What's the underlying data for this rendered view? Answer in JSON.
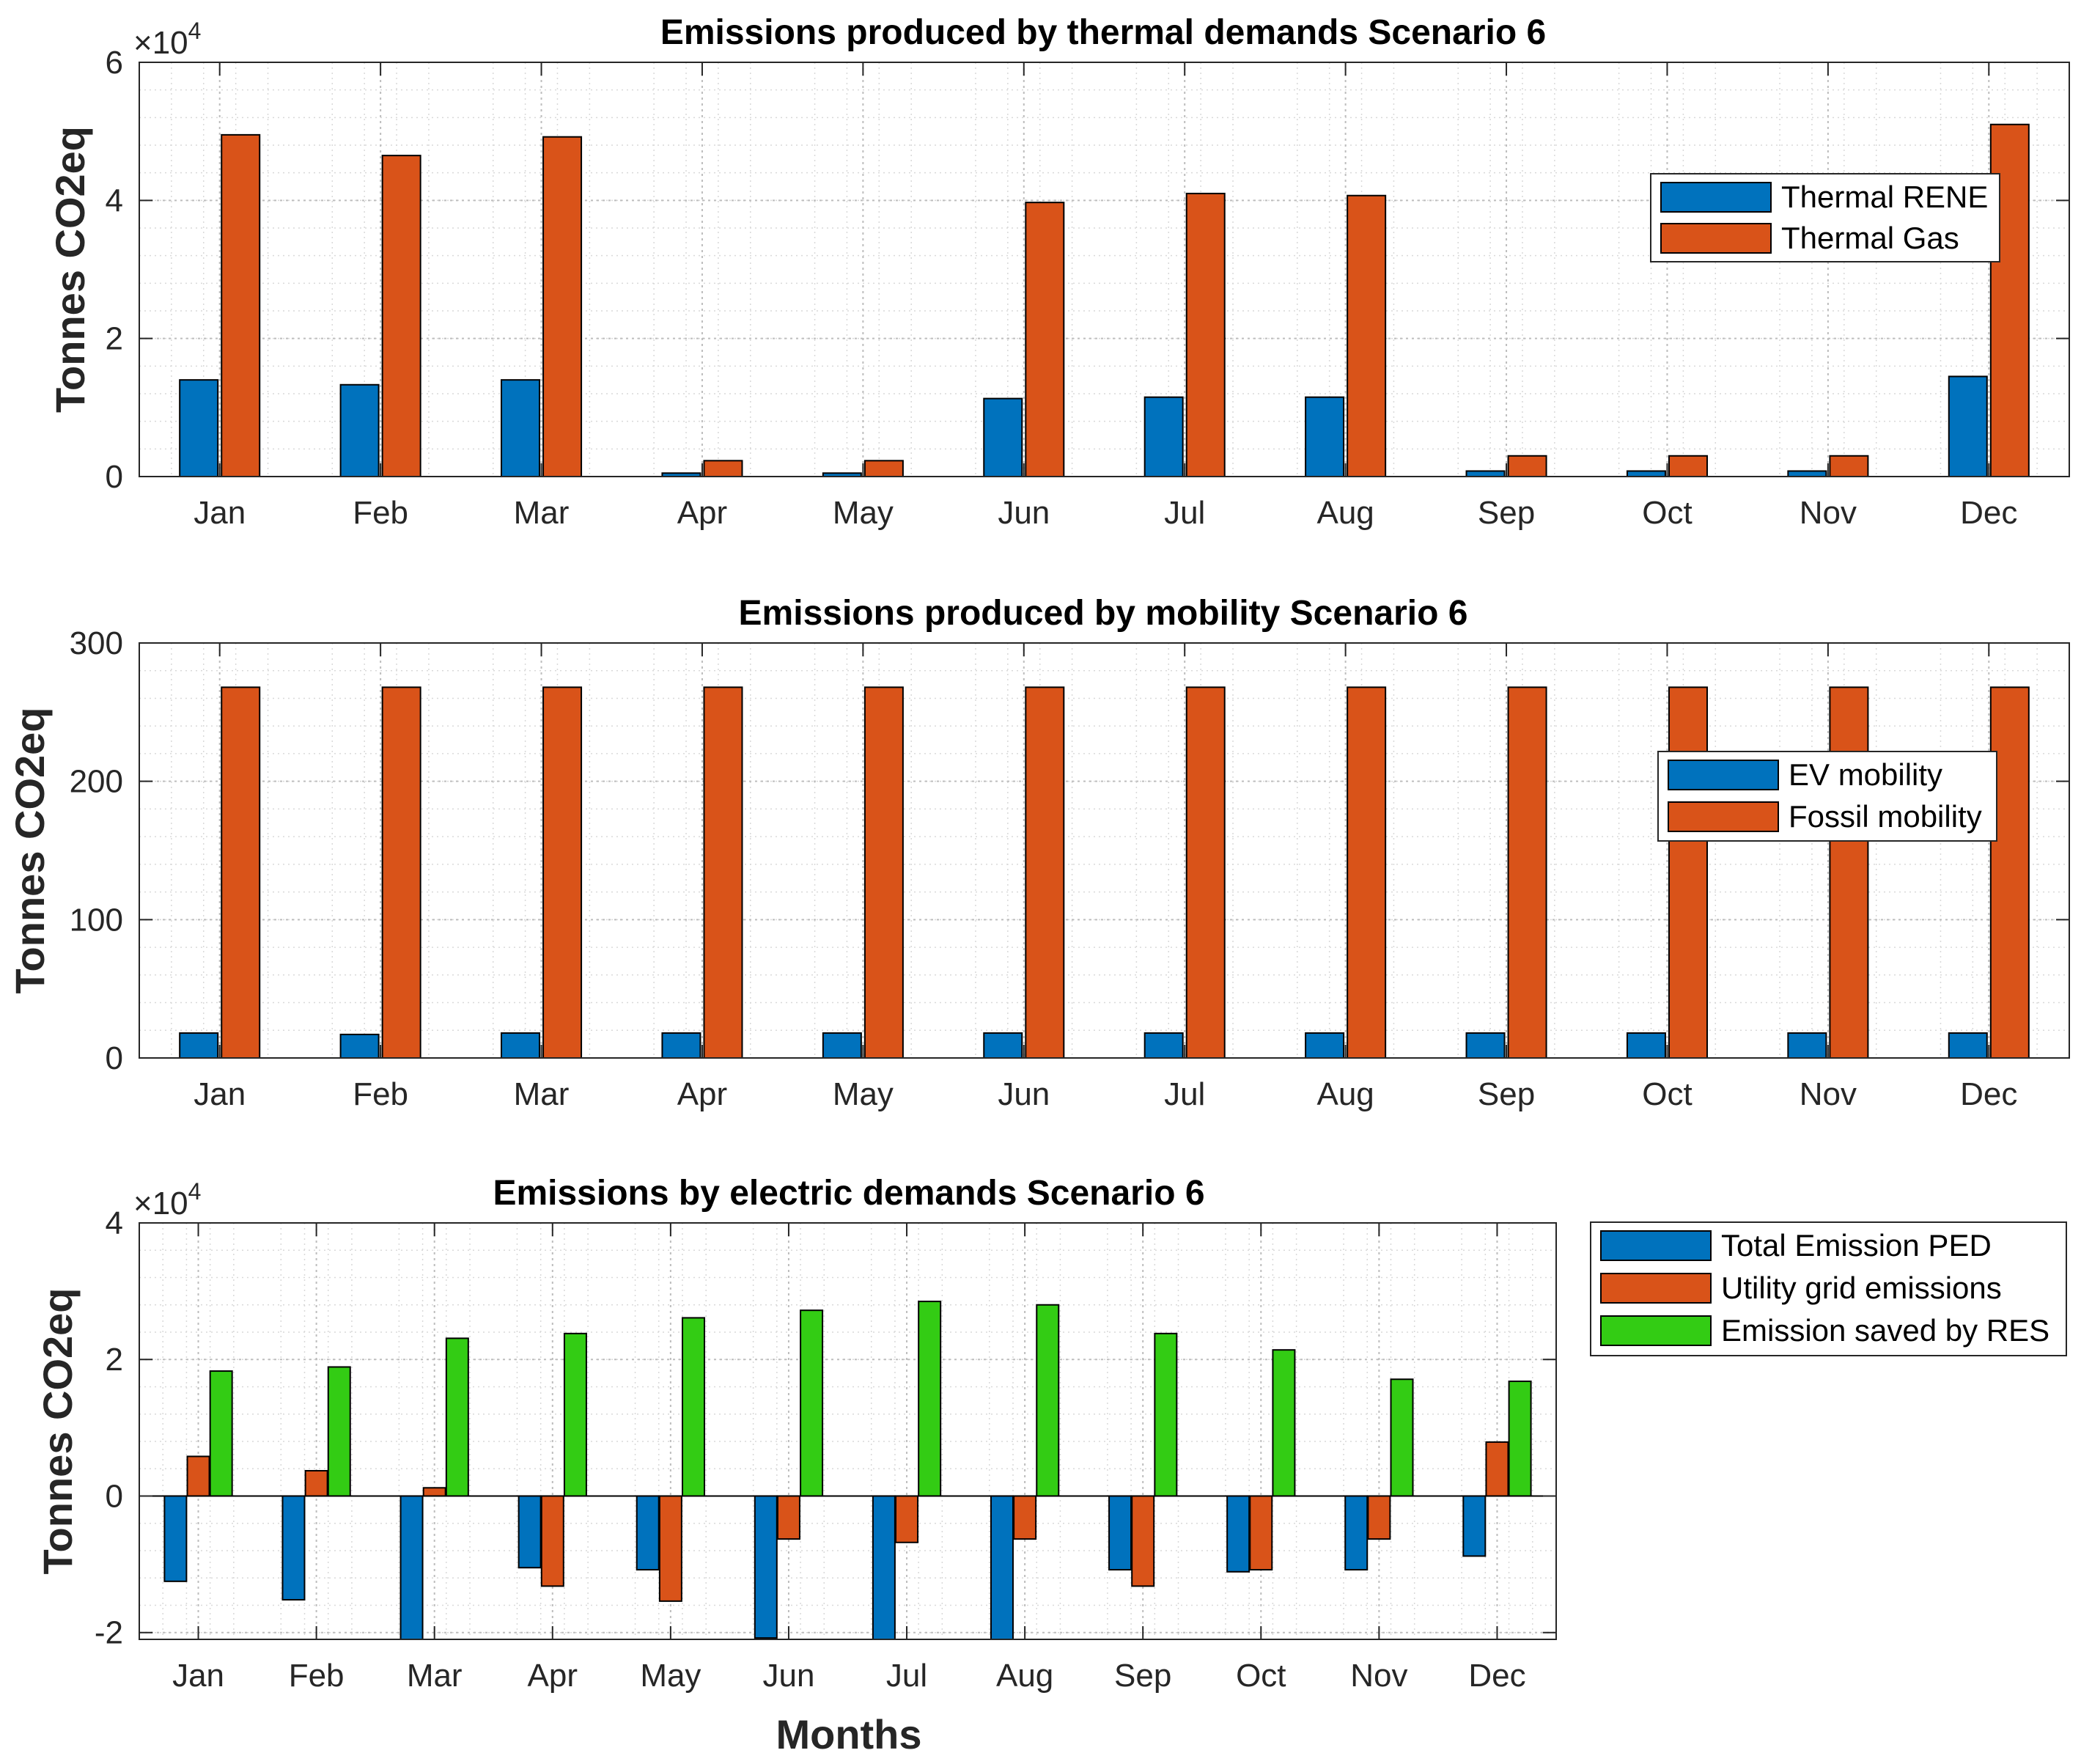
{
  "figure": {
    "xlabel": "Months"
  },
  "chart_data": [
    {
      "type": "bar",
      "title": "Emissions produced by thermal demands Scenario 6",
      "ylabel": "Tonnes CO2eq",
      "multiplier": "×10",
      "exponent": "4",
      "ylim": [
        0,
        60000
      ],
      "yticks": [
        0,
        20000,
        40000,
        60000
      ],
      "ytick_labels": [
        "0",
        "2",
        "4",
        "6"
      ],
      "grid": true,
      "legend_position": "upper-right",
      "categories": [
        "Jan",
        "Feb",
        "Mar",
        "Apr",
        "May",
        "Jun",
        "Jul",
        "Aug",
        "Sep",
        "Oct",
        "Nov",
        "Dec"
      ],
      "series": [
        {
          "name": "Thermal RENE",
          "color": "#0072BD",
          "values": [
            14000,
            13300,
            14000,
            500,
            500,
            11300,
            11500,
            11500,
            800,
            800,
            800,
            14500
          ]
        },
        {
          "name": "Thermal Gas",
          "color": "#D95319",
          "values": [
            49500,
            46500,
            49200,
            2300,
            2300,
            39700,
            41000,
            40700,
            3000,
            3000,
            3000,
            51000
          ]
        }
      ]
    },
    {
      "type": "bar",
      "title": "Emissions produced by mobility Scenario 6",
      "ylabel": "Tonnes CO2eq",
      "ylim": [
        0,
        300
      ],
      "yticks": [
        0,
        100,
        200,
        300
      ],
      "ytick_labels": [
        "0",
        "100",
        "200",
        "300"
      ],
      "grid": true,
      "legend_position": "center-right",
      "categories": [
        "Jan",
        "Feb",
        "Mar",
        "Apr",
        "May",
        "Jun",
        "Jul",
        "Aug",
        "Sep",
        "Oct",
        "Nov",
        "Dec"
      ],
      "series": [
        {
          "name": "EV mobility",
          "color": "#0072BD",
          "values": [
            18,
            17,
            18,
            18,
            18,
            18,
            18,
            18,
            18,
            18,
            18,
            18
          ]
        },
        {
          "name": "Fossil mobility",
          "color": "#D95319",
          "values": [
            268,
            268,
            268,
            268,
            268,
            268,
            268,
            268,
            268,
            268,
            268,
            268
          ]
        }
      ]
    },
    {
      "type": "bar",
      "title": "Emissions by electric demands Scenario 6",
      "ylabel": "Tonnes CO2eq",
      "xlabel": "Months",
      "multiplier": "×10",
      "exponent": "4",
      "ylim": [
        -21000,
        40000
      ],
      "yticks": [
        -20000,
        0,
        20000,
        40000
      ],
      "ytick_labels": [
        "-2",
        "0",
        "2",
        "4"
      ],
      "grid": true,
      "legend_position": "outside-right",
      "categories": [
        "Jan",
        "Feb",
        "Mar",
        "Apr",
        "May",
        "Jun",
        "Jul",
        "Aug",
        "Sep",
        "Oct",
        "Nov",
        "Dec"
      ],
      "series": [
        {
          "name": "Total Emission PED",
          "color": "#0072BD",
          "values": [
            -12500,
            -15200,
            -22000,
            -10500,
            -10800,
            -20800,
            -23000,
            -23000,
            -10800,
            -11100,
            -10800,
            -8800
          ]
        },
        {
          "name": "Utility grid emissions",
          "color": "#D95319",
          "values": [
            5800,
            3700,
            1200,
            -13200,
            -15400,
            -6300,
            -6800,
            -6300,
            -13200,
            -10800,
            -6300,
            7900
          ]
        },
        {
          "name": "Emission saved by RES",
          "color": "#33CC14",
          "values": [
            18300,
            18900,
            23100,
            23800,
            26100,
            27200,
            28500,
            28000,
            23800,
            21400,
            17100,
            16800
          ]
        }
      ]
    }
  ]
}
